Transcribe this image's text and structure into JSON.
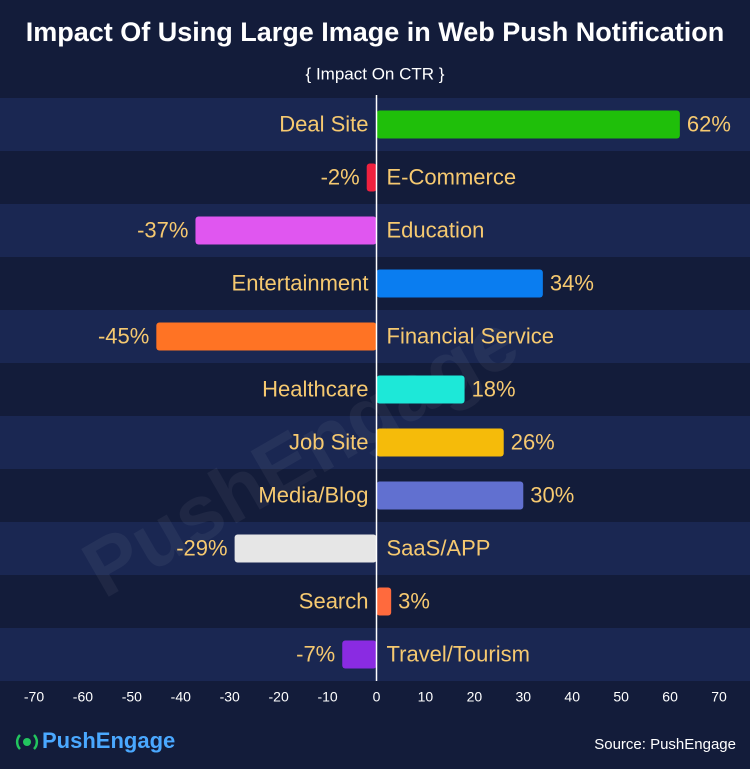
{
  "chart_data": {
    "type": "bar",
    "orientation": "horizontal",
    "title": "Impact Of Using Large Image in Web Push Notification",
    "subtitle": "{ Impact On CTR }",
    "categories": [
      "Deal Site",
      "E-Commerce",
      "Education",
      "Entertainment",
      "Financial Service",
      "Healthcare",
      "Job Site",
      "Media/Blog",
      "SaaS/APP",
      "Search",
      "Travel/Tourism"
    ],
    "values": [
      62,
      -2,
      -37,
      34,
      -45,
      18,
      26,
      30,
      -29,
      3,
      -7
    ],
    "value_labels": [
      "62%",
      "-2%",
      "-37%",
      "34%",
      "-45%",
      "18%",
      "26%",
      "30%",
      "-29%",
      "3%",
      "-7%"
    ],
    "colors": [
      "#1fbf0a",
      "#f0213f",
      "#e056f0",
      "#0a7df0",
      "#ff7324",
      "#1de8d8",
      "#f5bb0a",
      "#6170d0",
      "#e6e6e6",
      "#ff6a3d",
      "#8a2be2"
    ],
    "xlim": [
      -70,
      70
    ],
    "xticks": [
      -70,
      -60,
      -50,
      -40,
      -30,
      -20,
      -10,
      0,
      10,
      20,
      30,
      40,
      50,
      60,
      70
    ],
    "source": "Source: PushEngage",
    "brand": "PushEngage",
    "watermark": "PushEngage"
  }
}
